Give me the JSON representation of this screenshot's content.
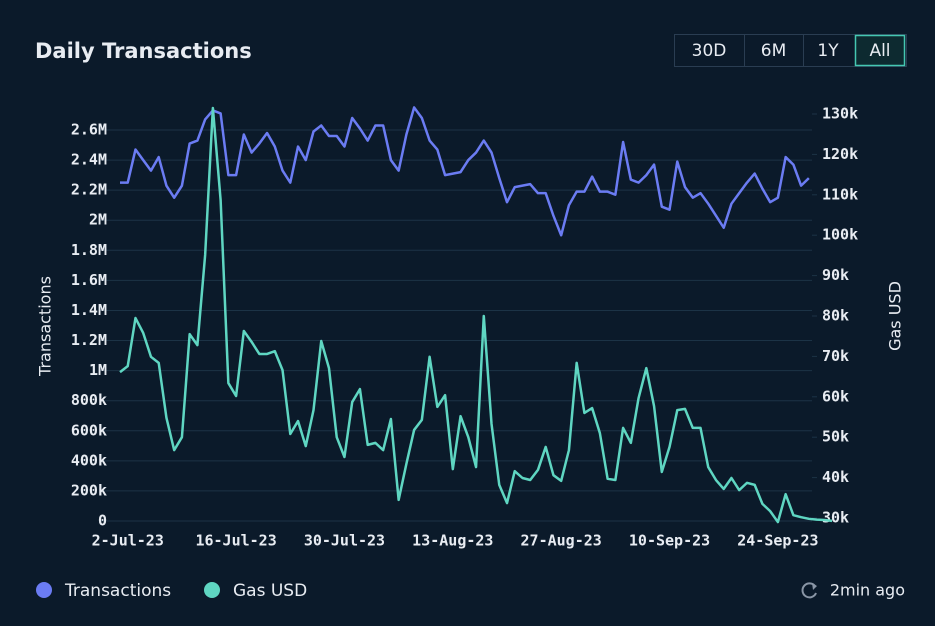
{
  "header": {
    "title": "Daily Transactions"
  },
  "buttons": [
    "30D",
    "6M",
    "1Y",
    "All"
  ],
  "active_button": 3,
  "chart_data": {
    "type": "line",
    "y_label": "Transactions",
    "y2_label": "Gas USD",
    "categories": [
      null,
      "2-Jul-23",
      null,
      null,
      null,
      null,
      null,
      null,
      null,
      null,
      null,
      null,
      null,
      null,
      null,
      "16-Jul-23",
      null,
      null,
      null,
      null,
      null,
      null,
      null,
      null,
      null,
      null,
      null,
      null,
      null,
      "30-Jul-23",
      null,
      null,
      null,
      null,
      null,
      null,
      null,
      null,
      null,
      null,
      null,
      null,
      null,
      "13-Aug-23",
      null,
      null,
      null,
      null,
      null,
      null,
      null,
      null,
      null,
      null,
      null,
      null,
      null,
      "27-Aug-23",
      null,
      null,
      null,
      null,
      null,
      null,
      null,
      null,
      null,
      null,
      null,
      null,
      null,
      "10-Sep-23",
      null,
      null,
      null,
      null,
      null,
      null,
      null,
      null,
      null,
      null,
      null,
      null,
      null,
      "24-Sep-23",
      null,
      null,
      null,
      null,
      null,
      null,
      null
    ],
    "series": [
      {
        "name": "Transactions",
        "color": "#6b7cf3",
        "axis": "y",
        "values": [
          2250000,
          2250000,
          2470000,
          2400000,
          2330000,
          2420000,
          2230000,
          2150000,
          2230000,
          2510000,
          2530000,
          2670000,
          2730000,
          2710000,
          2300000,
          2300000,
          2570000,
          2450000,
          2510000,
          2580000,
          2490000,
          2330000,
          2250000,
          2490000,
          2400000,
          2590000,
          2630000,
          2560000,
          2560000,
          2490000,
          2680000,
          2610000,
          2530000,
          2630000,
          2630000,
          2400000,
          2330000,
          2570000,
          2750000,
          2680000,
          2530000,
          2470000,
          2300000,
          2310000,
          2320000,
          2400000,
          2450000,
          2530000,
          2450000,
          2280000,
          2120000,
          2220000,
          2230000,
          2240000,
          2180000,
          2180000,
          2030000,
          1900000,
          2100000,
          2190000,
          2190000,
          2290000,
          2190000,
          2190000,
          2170000,
          2520000,
          2270000,
          2250000,
          2300000,
          2370000,
          2090000,
          2070000,
          2390000,
          2220000,
          2150000,
          2180000,
          2110000,
          2030000,
          1950000,
          2110000,
          2180000,
          2250000,
          2310000,
          2210000,
          2120000,
          2150000,
          2420000,
          2370000,
          2230000,
          2280000,
          null,
          null,
          null
        ]
      },
      {
        "name": "Gas USD",
        "color": "#5fd6c2",
        "axis": "y2",
        "values": [
          66100,
          67600,
          79500,
          75800,
          69900,
          68400,
          54800,
          46800,
          50000,
          75500,
          72800,
          95100,
          131500,
          108700,
          63400,
          60200,
          76300,
          73600,
          70600,
          70600,
          71300,
          66600,
          50800,
          54000,
          47800,
          56700,
          73800,
          67100,
          50000,
          45100,
          58700,
          61900,
          48100,
          48600,
          46800,
          54500,
          34500,
          43400,
          51800,
          54300,
          69900,
          57500,
          60400,
          42100,
          55200,
          50000,
          42600,
          80000,
          53300,
          38200,
          33700,
          41600,
          39900,
          39400,
          41900,
          47600,
          40600,
          39200,
          46800,
          68400,
          56000,
          57200,
          51000,
          39700,
          39400,
          52300,
          48600,
          59700,
          67100,
          57700,
          41400,
          47600,
          56700,
          57000,
          52300,
          52300,
          42600,
          39400,
          37200,
          39900,
          36900,
          38700,
          38200,
          33500,
          31700,
          29000,
          35900,
          30700,
          30200,
          29800,
          29600,
          29500,
          29300
        ]
      }
    ],
    "ylim": [
      0,
      2600000
    ],
    "yticks": [
      0,
      {
        "value": 200000,
        "label": "200k"
      },
      {
        "value": 400000,
        "label": "400k"
      },
      {
        "value": 600000,
        "label": "600k"
      },
      {
        "value": 800000,
        "label": "800k"
      },
      {
        "value": 1000000,
        "label": "1M"
      },
      {
        "value": 1200000,
        "label": "1.2M"
      },
      {
        "value": 1400000,
        "label": "1.4M"
      },
      {
        "value": 1600000,
        "label": "1.6M"
      },
      {
        "value": 1800000,
        "label": "1.8M"
      },
      {
        "value": 2000000,
        "label": "2M"
      },
      {
        "value": 2200000,
        "label": "2.2M"
      },
      {
        "value": 2400000,
        "label": "2.4M"
      },
      {
        "value": 2600000,
        "label": "2.6M"
      }
    ],
    "y2lim": [
      30000,
      130000
    ],
    "y2ticks": [
      {
        "value": 30000,
        "label": "30k"
      },
      {
        "value": 40000,
        "label": "40k"
      },
      {
        "value": 50000,
        "label": "50k"
      },
      {
        "value": 60000,
        "label": "60k"
      },
      {
        "value": 70000,
        "label": "70k"
      },
      {
        "value": 80000,
        "label": "80k"
      },
      {
        "value": 90000,
        "label": "90k"
      },
      {
        "value": 100000,
        "label": "100k"
      },
      {
        "value": 110000,
        "label": "110k"
      },
      {
        "value": 120000,
        "label": "120k"
      },
      {
        "value": 130000,
        "label": "130k"
      }
    ],
    "grid": true
  },
  "footer": {
    "updated": "2min ago"
  }
}
